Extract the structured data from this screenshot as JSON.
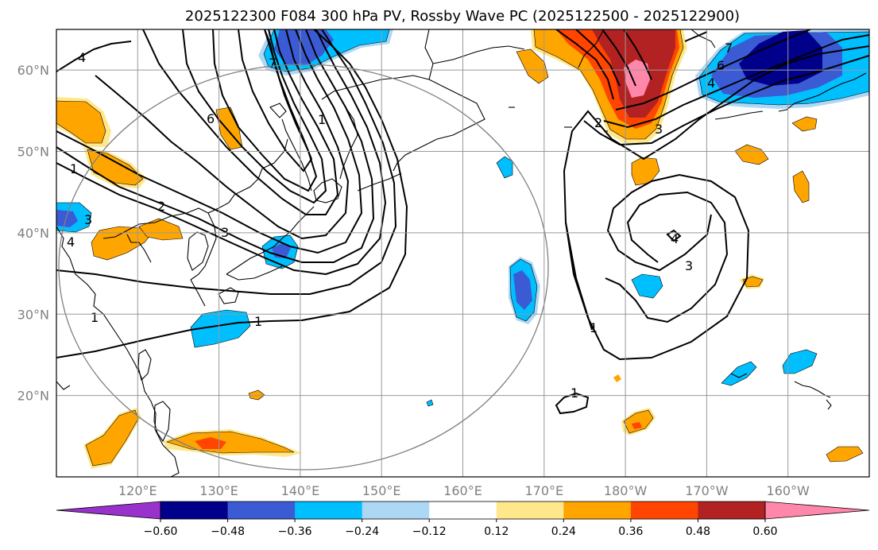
{
  "chart_data": {
    "type": "contour-map",
    "title": "2025122300 F084 300 hPa PV, Rossby Wave PC (2025122500 - 2025122900)",
    "projection": "PlateCarree",
    "lon_range": [
      110,
      210
    ],
    "lat_range": [
      10,
      65
    ],
    "grid": true,
    "x_ticks": [
      {
        "lon": 120,
        "label": "120°E"
      },
      {
        "lon": 130,
        "label": "130°E"
      },
      {
        "lon": 140,
        "label": "140°E"
      },
      {
        "lon": 150,
        "label": "150°E"
      },
      {
        "lon": 160,
        "label": "160°E"
      },
      {
        "lon": 170,
        "label": "170°E"
      },
      {
        "lon": 180,
        "label": "180°W"
      },
      {
        "lon": 190,
        "label": "170°W"
      },
      {
        "lon": 200,
        "label": "160°W"
      }
    ],
    "y_ticks": [
      {
        "lat": 20,
        "label": "20°N"
      },
      {
        "lat": 30,
        "label": "30°N"
      },
      {
        "lat": 40,
        "label": "40°N"
      },
      {
        "lat": 50,
        "label": "50°N"
      },
      {
        "lat": 60,
        "label": "60°N"
      }
    ],
    "colorbar": {
      "orientation": "horizontal",
      "extend": "both",
      "colors": [
        "#9932cc",
        "#00008b",
        "#3b5bd5",
        "#00bfff",
        "#add8f5",
        "#ffffff",
        "#ffe88c",
        "#ffa500",
        "#ff4500",
        "#b22222",
        "#ff88aa"
      ],
      "tick_labels": [
        "−0.60",
        "−0.48",
        "−0.36",
        "−0.24",
        "−0.12",
        "0.12",
        "0.24",
        "0.36",
        "0.48",
        "0.60"
      ]
    },
    "pv_contour_labels": [
      "4",
      "7",
      "1",
      "6",
      "2",
      "3",
      "4",
      "1",
      "1",
      "3",
      "2",
      "4",
      "3",
      "1",
      "1",
      "7",
      "6",
      "4",
      "3",
      "1"
    ],
    "shaded_anomalies": [
      {
        "lon": 112,
        "lat": 52,
        "level": "0.24"
      },
      {
        "lon": 117,
        "lat": 48,
        "level": "0.24"
      },
      {
        "lon": 131,
        "lat": 50,
        "level": "0.24"
      },
      {
        "lon": 116,
        "lat": 39,
        "level": "0.24"
      },
      {
        "lon": 123,
        "lat": 40,
        "level": "0.24"
      },
      {
        "lon": 112,
        "lat": 41,
        "level": "-0.24"
      },
      {
        "lon": 141,
        "lat": 63,
        "level": "-0.36"
      },
      {
        "lon": 138,
        "lat": 37,
        "level": "-0.24"
      },
      {
        "lon": 131,
        "lat": 28,
        "level": "-0.24"
      },
      {
        "lon": 117,
        "lat": 15,
        "level": "0.24"
      },
      {
        "lon": 129,
        "lat": 14,
        "level": "0.36"
      },
      {
        "lon": 135,
        "lat": 20,
        "level": "0.24"
      },
      {
        "lon": 157,
        "lat": 19,
        "level": "-0.24"
      },
      {
        "lon": 166,
        "lat": 49,
        "level": "-0.24"
      },
      {
        "lon": 168,
        "lat": 33,
        "level": "-0.36"
      },
      {
        "lon": 170,
        "lat": 61,
        "level": "0.24"
      },
      {
        "lon": 180,
        "lat": 60,
        "level": "0.60"
      },
      {
        "lon": 182,
        "lat": 48,
        "level": "0.24"
      },
      {
        "lon": 183,
        "lat": 34,
        "level": "-0.24"
      },
      {
        "lon": 178,
        "lat": 22,
        "level": "0.24"
      },
      {
        "lon": 181,
        "lat": 15,
        "level": "0.36"
      },
      {
        "lon": 195,
        "lat": 61,
        "level": "-0.48"
      },
      {
        "lon": 203,
        "lat": 52,
        "level": "0.24"
      },
      {
        "lon": 198,
        "lat": 50,
        "level": "0.24"
      },
      {
        "lon": 202,
        "lat": 46,
        "level": "0.24"
      },
      {
        "lon": 196,
        "lat": 33,
        "level": "0.24"
      },
      {
        "lon": 194,
        "lat": 23,
        "level": "-0.24"
      },
      {
        "lon": 201,
        "lat": 24,
        "level": "-0.24"
      },
      {
        "lon": 207,
        "lat": 13,
        "level": "0.24"
      }
    ]
  }
}
